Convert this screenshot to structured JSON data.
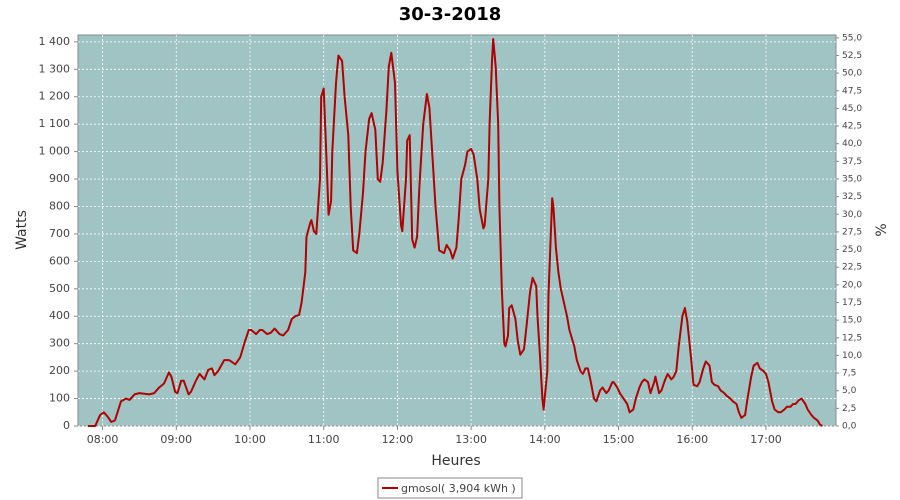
{
  "chart_data": {
    "type": "line",
    "title": "30-3-2018",
    "x_label": "Heures",
    "y_label": "Watts",
    "y2_label": "%",
    "x": [
      468,
      474,
      478,
      481,
      484,
      487,
      490,
      495,
      499,
      502,
      506,
      510,
      518,
      522,
      526,
      530,
      534,
      536,
      539,
      541,
      544,
      546,
      550,
      552,
      556,
      559,
      563,
      566,
      569,
      571,
      574,
      579,
      583,
      588,
      592,
      596,
      599,
      601,
      605,
      608,
      610,
      614,
      617,
      620,
      624,
      627,
      631,
      634,
      637,
      640,
      642,
      645,
      646,
      649,
      650,
      652,
      654,
      657,
      658,
      660,
      662,
      664,
      666,
      667,
      670,
      672,
      675,
      677,
      680,
      682,
      684,
      687,
      689,
      692,
      694,
      697,
      699,
      702,
      704,
      706,
      708,
      711,
      713,
      715,
      718,
      720,
      723,
      724,
      727,
      728,
      730,
      732,
      734,
      736,
      738,
      741,
      744,
      746,
      749,
      751,
      754,
      758,
      760,
      763,
      765,
      768,
      770,
      772,
      775,
      777,
      780,
      782,
      785,
      787,
      790,
      791,
      794,
      795,
      797,
      798,
      800,
      802,
      803,
      805,
      807,
      808,
      810,
      811,
      813,
      816,
      818,
      820,
      823,
      825,
      828,
      830,
      833,
      834,
      836,
      838,
      839,
      842,
      843,
      846,
      847,
      849,
      851,
      853,
      855,
      858,
      860,
      864,
      866,
      869,
      871,
      873,
      875,
      877,
      880,
      882,
      885,
      887,
      890,
      892,
      895,
      896,
      899,
      901,
      904,
      907,
      909,
      912,
      914,
      917,
      919,
      921,
      924,
      926,
      929,
      930,
      933,
      935,
      938,
      940,
      943,
      945,
      947,
      949,
      952,
      954,
      956,
      959,
      961,
      964,
      966,
      969,
      971,
      974,
      976,
      978,
      981,
      983,
      986,
      988,
      991,
      993,
      996,
      998,
      1000,
      1003,
      1005,
      1008,
      1010,
      1013,
      1015,
      1018,
      1020,
      1022,
      1025,
      1027,
      1030,
      1032,
      1035,
      1037,
      1040,
      1042,
      1044,
      1047,
      1049,
      1052,
      1054,
      1057,
      1059,
      1062,
      1064,
      1066
    ],
    "series": [
      {
        "name": "gmosol( 3,904 kWh )",
        "color": "#b00000",
        "values": [
          0,
          0,
          40,
          50,
          35,
          15,
          20,
          90,
          100,
          95,
          115,
          120,
          115,
          120,
          140,
          155,
          195,
          180,
          125,
          120,
          165,
          165,
          115,
          125,
          165,
          190,
          170,
          205,
          210,
          185,
          200,
          240,
          240,
          225,
          250,
          310,
          350,
          350,
          335,
          350,
          350,
          335,
          340,
          355,
          335,
          330,
          350,
          390,
          400,
          405,
          450,
          560,
          690,
          740,
          750,
          710,
          700,
          900,
          1200,
          1230,
          1000,
          770,
          820,
          1000,
          1250,
          1350,
          1330,
          1200,
          1060,
          800,
          640,
          630,
          700,
          850,
          1000,
          1120,
          1140,
          1080,
          900,
          890,
          960,
          1150,
          1310,
          1360,
          1250,
          930,
          730,
          710,
          900,
          1040,
          1060,
          680,
          650,
          690,
          880,
          1100,
          1210,
          1160,
          950,
          800,
          640,
          630,
          660,
          640,
          610,
          650,
          760,
          900,
          950,
          1000,
          1010,
          990,
          900,
          790,
          720,
          730,
          900,
          1100,
          1330,
          1410,
          1310,
          1100,
          800,
          500,
          300,
          290,
          330,
          430,
          440,
          390,
          310,
          260,
          280,
          360,
          490,
          540,
          510,
          400,
          260,
          100,
          60,
          200,
          480,
          830,
          800,
          650,
          560,
          500,
          460,
          400,
          350,
          290,
          240,
          200,
          190,
          210,
          210,
          170,
          100,
          90,
          130,
          140,
          120,
          130,
          160,
          160,
          140,
          120,
          100,
          80,
          50,
          60,
          100,
          140,
          160,
          170,
          160,
          120,
          160,
          180,
          120,
          130,
          170,
          190,
          170,
          180,
          200,
          290,
          400,
          430,
          380,
          250,
          150,
          145,
          160,
          210,
          235,
          220,
          160,
          150,
          145,
          130,
          120,
          110,
          100,
          90,
          80,
          50,
          30,
          40,
          100,
          180,
          220,
          230,
          210,
          200,
          190,
          160,
          90,
          60,
          50,
          50,
          60,
          70,
          70,
          80,
          80,
          95,
          100,
          80,
          60,
          40,
          30,
          20,
          5,
          0
        ]
      }
    ],
    "xlim": [
      460,
      1077
    ],
    "xticks": [
      {
        "value": 480,
        "label": "08:00"
      },
      {
        "value": 540,
        "label": "09:00"
      },
      {
        "value": 600,
        "label": "10:00"
      },
      {
        "value": 660,
        "label": "11:00"
      },
      {
        "value": 720,
        "label": "12:00"
      },
      {
        "value": 780,
        "label": "13:00"
      },
      {
        "value": 840,
        "label": "14:00"
      },
      {
        "value": 900,
        "label": "15:00"
      },
      {
        "value": 960,
        "label": "16:00"
      },
      {
        "value": 1020,
        "label": "17:00"
      }
    ],
    "ylim": [
      0,
      1425
    ],
    "yticks": [
      0,
      100,
      200,
      300,
      400,
      500,
      600,
      700,
      800,
      900,
      {
        "value": 1000,
        "label": "1 000"
      },
      {
        "value": 1100,
        "label": "1 100"
      },
      {
        "value": 1200,
        "label": "1 200"
      },
      {
        "value": 1300,
        "label": "1 300"
      },
      {
        "value": 1400,
        "label": "1 400"
      }
    ],
    "y2lim": [
      0,
      55.4
    ],
    "y2ticks": [
      {
        "value": 0,
        "label": "0,0"
      },
      {
        "value": 2.5,
        "label": "2,5"
      },
      {
        "value": 5,
        "label": "5,0"
      },
      {
        "value": 7.5,
        "label": "7,5"
      },
      {
        "value": 10,
        "label": "10,0"
      },
      {
        "value": 12.5,
        "label": "12,5"
      },
      {
        "value": 15,
        "label": "15,0"
      },
      {
        "value": 17.5,
        "label": "17,5"
      },
      {
        "value": 20,
        "label": "20,0"
      },
      {
        "value": 22.5,
        "label": "22,5"
      },
      {
        "value": 25,
        "label": "25,0"
      },
      {
        "value": 27.5,
        "label": "27,5"
      },
      {
        "value": 30,
        "label": "30,0"
      },
      {
        "value": 32.5,
        "label": "32,5"
      },
      {
        "value": 35,
        "label": "35,0"
      },
      {
        "value": 37.5,
        "label": "37,5"
      },
      {
        "value": 40,
        "label": "40,0"
      },
      {
        "value": 42.5,
        "label": "42,5"
      },
      {
        "value": 45,
        "label": "45,0"
      },
      {
        "value": 47.5,
        "label": "47,5"
      },
      {
        "value": 50,
        "label": "50,0"
      },
      {
        "value": 52.5,
        "label": "52,5"
      },
      {
        "value": 55,
        "label": "55,0"
      }
    ],
    "grid": true,
    "plot_background": "#a0c4c4"
  }
}
